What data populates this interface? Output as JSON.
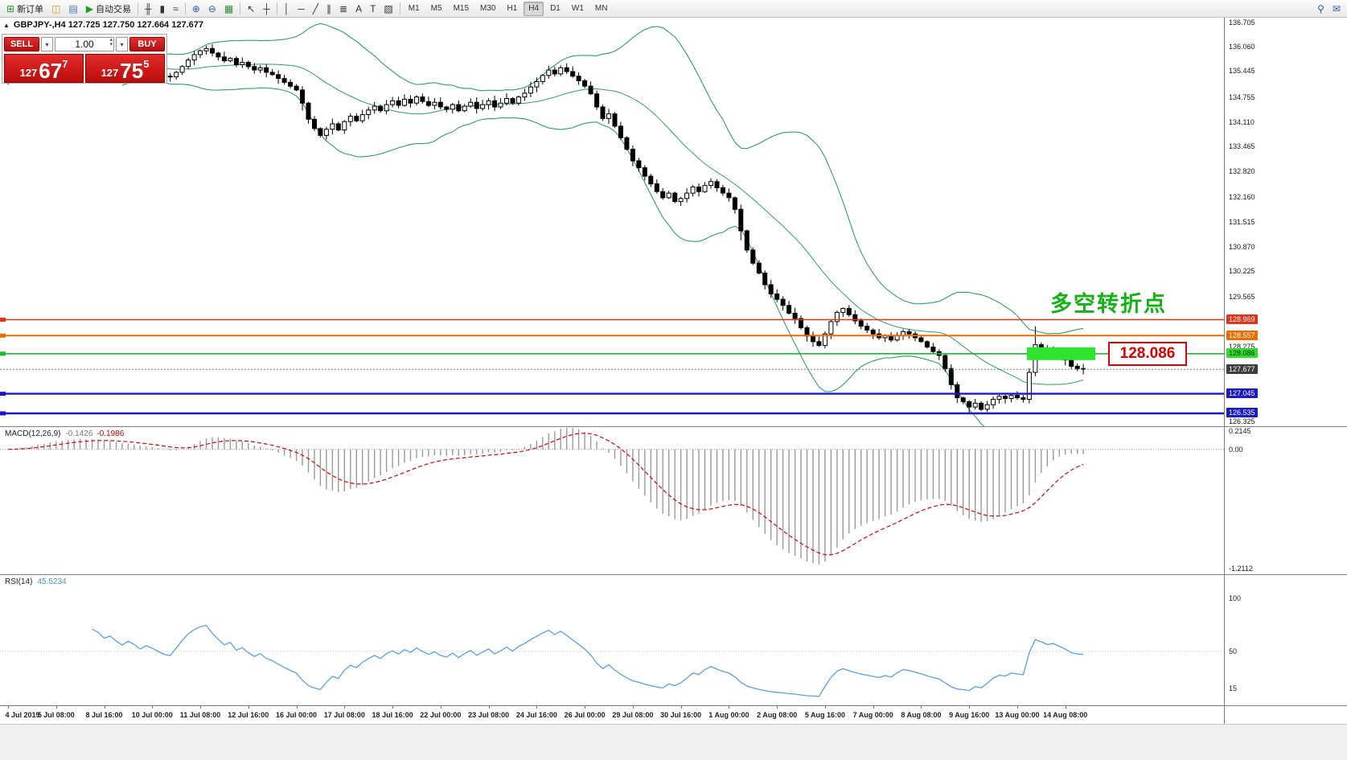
{
  "icons": {
    "collapse": "▲",
    "dropdown": "▾",
    "step_up": "▴",
    "step_down": "▾"
  },
  "toolbar": {
    "left_items": [
      {
        "name": "new-order-button",
        "icon": "new-order-icon",
        "glyph": "⊞",
        "glyph_color": "#1f9d1f",
        "label": "新订单"
      },
      {
        "name": "chart-window-button",
        "icon": "chart-window-icon",
        "glyph": "◫",
        "glyph_color": "#c9a227"
      },
      {
        "name": "profiles-button",
        "icon": "profiles-icon",
        "glyph": "▤",
        "glyph_color": "#4472c4"
      },
      {
        "name": "auto-trading-button",
        "icon": "auto-trading-icon",
        "glyph": "▶",
        "glyph_color": "#18a018",
        "label": "自动交易"
      },
      {
        "sep": true
      },
      {
        "name": "bar-chart-button",
        "icon": "bar-chart-icon",
        "glyph": "╫",
        "glyph_color": "#333333"
      },
      {
        "name": "candlestick-chart-button",
        "icon": "candlestick-icon",
        "glyph": "▮",
        "glyph_color": "#333333"
      },
      {
        "name": "line-chart-button",
        "icon": "line-chart-icon",
        "glyph": "≈",
        "glyph_color": "#333333"
      },
      {
        "sep": true
      },
      {
        "name": "zoom-in-button",
        "icon": "zoom-in-icon",
        "glyph": "⊕",
        "glyph_color": "#2a5caa"
      },
      {
        "name": "zoom-out-button",
        "icon": "zoom-out-icon",
        "glyph": "⊖",
        "glyph_color": "#2a5caa"
      },
      {
        "name": "tile-windows-button",
        "icon": "tile-windows-icon",
        "glyph": "▦",
        "glyph_color": "#2e8b2e"
      },
      {
        "sep": true
      },
      {
        "name": "cursor-button",
        "icon": "cursor-icon",
        "glyph": "↖",
        "glyph_color": "#333333"
      },
      {
        "name": "crosshair-button",
        "icon": "crosshair-icon",
        "glyph": "┼",
        "glyph_color": "#333333"
      },
      {
        "sep": true
      },
      {
        "name": "vertical-line-button",
        "icon": "vertical-line-icon",
        "glyph": "│",
        "glyph_color": "#333333"
      },
      {
        "name": "horizontal-line-button",
        "icon": "horizontal-line-icon",
        "glyph": "─",
        "glyph_color": "#333333"
      },
      {
        "name": "trendline-button",
        "icon": "trendline-icon",
        "glyph": "╱",
        "glyph_color": "#333333"
      },
      {
        "name": "channel-button",
        "icon": "channel-icon",
        "glyph": "∥",
        "glyph_color": "#333333"
      },
      {
        "name": "fibonacci-button",
        "icon": "fibonacci-icon",
        "glyph": "≣",
        "glyph_color": "#333333"
      },
      {
        "name": "text-button",
        "icon": "text-icon",
        "glyph": "A",
        "glyph_color": "#333333"
      },
      {
        "name": "label-button",
        "icon": "label-icon",
        "glyph": "T",
        "glyph_color": "#333333"
      },
      {
        "name": "shapes-button",
        "icon": "shapes-icon",
        "glyph": "▧",
        "glyph_color": "#333333"
      },
      {
        "sep": true
      }
    ],
    "timeframes": [
      "M1",
      "M5",
      "M15",
      "M30",
      "H1",
      "H4",
      "D1",
      "W1",
      "MN"
    ],
    "active_timeframe": "H4",
    "right_items": [
      {
        "name": "search-button",
        "icon": "search-icon",
        "glyph": "⚲",
        "glyph_color": "#2a5caa"
      },
      {
        "name": "community-button",
        "icon": "community-icon",
        "glyph": "✉",
        "glyph_color": "#2a5caa"
      }
    ]
  },
  "chart": {
    "title": "GBPJPY-,H4 127.725 127.750 127.664 127.677"
  },
  "one_click": {
    "sell_label": "SELL",
    "buy_label": "BUY",
    "volume": "1.00",
    "bid": {
      "big": "127",
      "pips": "67",
      "frac": "7"
    },
    "ask": {
      "big": "127",
      "pips": "75",
      "frac": "5"
    }
  },
  "annotations": {
    "turning_point": "多空转折点",
    "price_callout": "128.086"
  },
  "macd": {
    "label": "MACD(12,26,9)",
    "value1": "-0.1426",
    "value2": "-0.1986"
  },
  "rsi": {
    "label": "RSI(14)",
    "value": "45.5234"
  },
  "chart_data": {
    "type": "candlestick",
    "symbol": "GBPJPY",
    "timeframe": "H4",
    "ohlc_display": {
      "open": "127.725",
      "high": "127.750",
      "low": "127.664",
      "close": "127.677"
    },
    "y_range": [
      126.2,
      136.82
    ],
    "closes": [
      135.2,
      135.28,
      135.35,
      135.3,
      135.42,
      135.5,
      135.44,
      135.55,
      135.6,
      135.52,
      135.58,
      135.65,
      135.6,
      135.55,
      135.62,
      135.58,
      135.5,
      135.55,
      135.48,
      135.42,
      135.5,
      135.45,
      135.38,
      135.44,
      135.4,
      135.35,
      135.3,
      135.28,
      135.4,
      135.55,
      135.72,
      135.86,
      135.96,
      136.02,
      135.9,
      135.8,
      135.7,
      135.76,
      135.6,
      135.66,
      135.55,
      135.46,
      135.52,
      135.4,
      135.34,
      135.24,
      135.14,
      135.04,
      134.94,
      134.6,
      134.18,
      133.94,
      133.76,
      133.92,
      134.06,
      133.9,
      134.12,
      134.26,
      134.14,
      134.3,
      134.42,
      134.52,
      134.4,
      134.56,
      134.66,
      134.54,
      134.7,
      134.6,
      134.76,
      134.64,
      134.54,
      134.62,
      134.5,
      134.44,
      134.56,
      134.4,
      134.52,
      134.62,
      134.46,
      134.56,
      134.66,
      134.5,
      134.6,
      134.72,
      134.6,
      134.76,
      134.86,
      135.02,
      135.16,
      135.32,
      135.46,
      135.36,
      135.52,
      135.42,
      135.3,
      135.18,
      135.04,
      134.84,
      134.5,
      134.2,
      134.32,
      134.0,
      133.7,
      133.4,
      133.1,
      132.92,
      132.7,
      132.5,
      132.3,
      132.14,
      132.26,
      132.04,
      132.12,
      132.26,
      132.42,
      132.3,
      132.46,
      132.56,
      132.4,
      132.26,
      132.14,
      131.84,
      131.28,
      130.78,
      130.44,
      130.18,
      129.88,
      129.64,
      129.5,
      129.34,
      129.14,
      129.0,
      128.76,
      128.54,
      128.4,
      128.3,
      128.6,
      128.92,
      129.16,
      129.26,
      129.1,
      128.94,
      128.8,
      128.7,
      128.6,
      128.5,
      128.56,
      128.44,
      128.56,
      128.66,
      128.6,
      128.5,
      128.4,
      128.26,
      128.14,
      128.04,
      127.7,
      127.28,
      126.94,
      126.84,
      126.7,
      126.8,
      126.64,
      126.76,
      126.9,
      126.98,
      126.92,
      127.0,
      126.94,
      126.9,
      127.6,
      128.32,
      128.22,
      128.1,
      128.16,
      128.04,
      127.92,
      127.76,
      127.7,
      127.68
    ],
    "high_wick_overrides": {
      "171": 0.4
    },
    "low_wick_overrides": {
      "49": 0.12,
      "122": 0.15,
      "160": 0.1
    },
    "indicators": {
      "bollinger": {
        "period": 20,
        "deviation": 2,
        "color": "#2fa05f"
      },
      "macd": {
        "fast": 12,
        "slow": 26,
        "signal_period": 9,
        "scale_labels": [
          "0.2145",
          "0.00",
          "-1.2112"
        ],
        "scale_values": [
          0.2145,
          0.0,
          -1.2112
        ],
        "histogram_color": "#9a9a9a",
        "signal_color": "#e00000"
      },
      "rsi": {
        "period": 14,
        "scale_labels": [
          "100",
          "50",
          "15"
        ],
        "scale_values": [
          100,
          50,
          15
        ],
        "color": "#5aa0e6"
      }
    },
    "levels": [
      {
        "price": 128.969,
        "color": "#e5321a",
        "width": 1.4,
        "label": "128.969",
        "text_color": "#ffffff"
      },
      {
        "price": 128.557,
        "color": "#f06a00",
        "width": 2.0,
        "label": "128.557",
        "text_color": "#ffffff"
      },
      {
        "price": 128.086,
        "color": "#1fb537",
        "width": 1.6,
        "label": "128.086",
        "text_color": "#002b00",
        "tag_color": "#2edd2e"
      },
      {
        "price": 127.045,
        "color": "#1919cd",
        "width": 2.4,
        "label": "127.045",
        "text_color": "#ffffff"
      },
      {
        "price": 126.535,
        "color": "#1919cd",
        "width": 2.4,
        "label": "126.535",
        "text_color": "#ffffff"
      }
    ],
    "current_price": {
      "value": 127.677,
      "label": "127.677",
      "tag_color": "#3d3d3d",
      "line_color": "#888888"
    },
    "highlight": {
      "price": 128.086,
      "x_from": 1277,
      "x_to": 1362,
      "height": 16,
      "color": "#2fe32f"
    },
    "price_axis_labels": [
      "136.705",
      "136.060",
      "135.445",
      "134.755",
      "134.110",
      "133.465",
      "132.820",
      "132.160",
      "131.515",
      "130.870",
      "130.225",
      "129.565",
      "128.275",
      "126.325"
    ],
    "time_axis_labels": [
      "4 Jul 2019",
      "5 Jul 08:00",
      "8 Jul 16:00",
      "10 Jul 00:00",
      "11 Jul 08:00",
      "12 Jul 16:00",
      "16 Jul 00:00",
      "17 Jul 08:00",
      "18 Jul 16:00",
      "22 Jul 00:00",
      "23 Jul 08:00",
      "24 Jul 16:00",
      "26 Jul 00:00",
      "29 Jul 08:00",
      "30 Jul 16:00",
      "1 Aug 00:00",
      "2 Aug 08:00",
      "5 Aug 16:00",
      "7 Aug 00:00",
      "8 Aug 08:00",
      "9 Aug 16:00",
      "13 Aug 00:00",
      "14 Aug 08:00"
    ]
  }
}
